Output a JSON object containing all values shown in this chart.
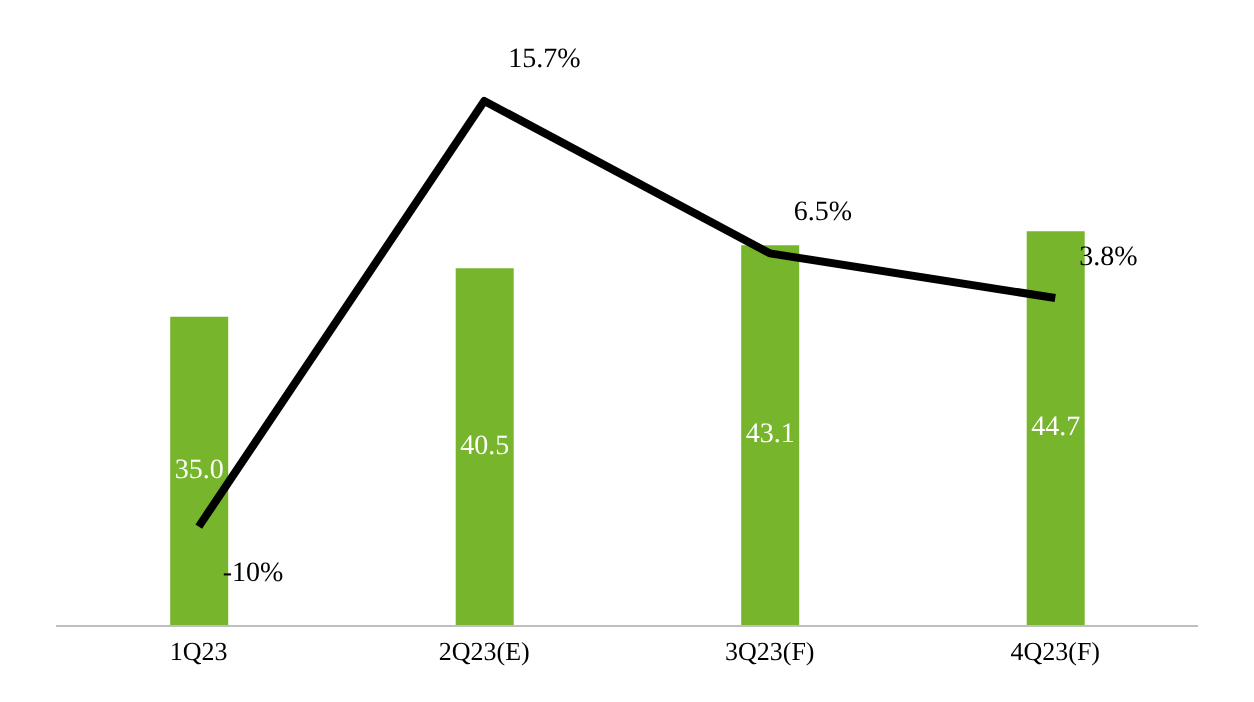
{
  "chart_data": {
    "type": "bar",
    "categories": [
      "1Q23",
      "2Q23(E)",
      "3Q23(F)",
      "4Q23(F)"
    ],
    "series": [
      {
        "color": "#77b52c",
        "values": [
          35.0,
          40.5,
          43.1,
          44.7
        ],
        "value_labels": [
          "35.0",
          "40.5",
          "43.1",
          "44.7"
        ]
      },
      {
        "type": "line",
        "axis": "y2",
        "color": "#000000",
        "values": [
          -10,
          15.7,
          6.5,
          3.8
        ],
        "value_labels": [
          "-10%",
          "15.7%",
          "6.5%",
          "3.8%"
        ]
      }
    ],
    "tick_labels": "x",
    "marker": "none",
    "line_style": "solid"
  }
}
